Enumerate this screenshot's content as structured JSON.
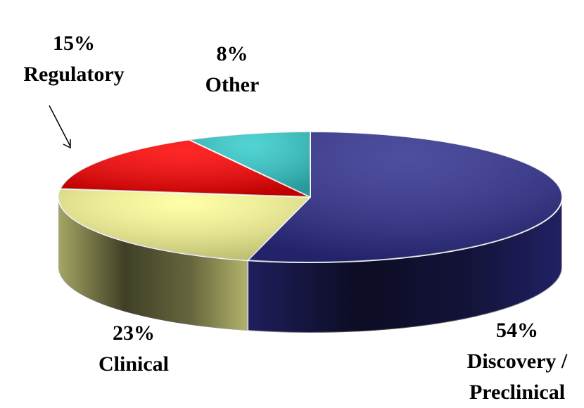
{
  "chart_data": {
    "type": "pie3d",
    "categories": [
      "Discovery / Preclinical",
      "Clinical",
      "Regulatory",
      "Other"
    ],
    "values": [
      54,
      23,
      15,
      8
    ],
    "value_labels": [
      "54%",
      "23%",
      "15%",
      "8%"
    ],
    "colors": [
      "#2f2f8f",
      "#ffff99",
      "#ff0000",
      "#33cccc"
    ]
  }
}
